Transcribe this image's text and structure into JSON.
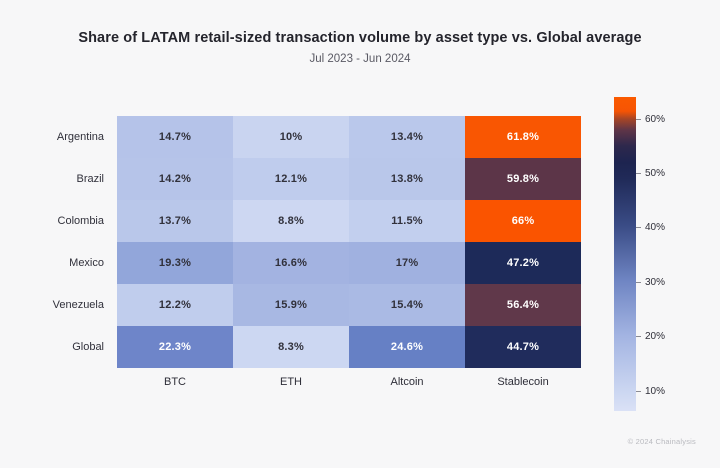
{
  "title": "Share of LATAM retail-sized transaction volume by asset type vs. Global average",
  "subtitle": "Jul 2023 - Jun 2024",
  "footer": "© 2024 Chainalysis",
  "colors": {
    "background": "#F7F7F8",
    "title_text": "#24242C",
    "subtitle_text": "#5A5A64",
    "axis_label_text": "#31313B",
    "cell_text_dark": "#31313B",
    "cell_text_light": "#FFFFFF",
    "footer_text": "#B9BABF",
    "orange_high": "#FA5600",
    "maroon_mid": "#5E3548",
    "navy_mid": "#1F2B5A",
    "lavender_low": "#CBD6F1"
  },
  "chart_data": {
    "type": "heatmap",
    "title": "Share of LATAM retail-sized transaction volume by asset type vs. Global average",
    "subtitle": "Jul 2023 - Jun 2024",
    "rows": [
      "Argentina",
      "Brazil",
      "Colombia",
      "Mexico",
      "Venezuela",
      "Global"
    ],
    "columns": [
      "BTC",
      "ETH",
      "Altcoin",
      "Stablecoin"
    ],
    "unit": "%",
    "values": [
      [
        14.7,
        10,
        13.4,
        61.8
      ],
      [
        14.2,
        12.1,
        13.8,
        59.8
      ],
      [
        13.7,
        8.8,
        11.5,
        66
      ],
      [
        19.3,
        16.6,
        17,
        47.2
      ],
      [
        12.2,
        15.9,
        15.4,
        56.4
      ],
      [
        22.3,
        8.3,
        24.6,
        44.7
      ]
    ],
    "cell_labels": [
      [
        "14.7%",
        "10%",
        "13.4%",
        "61.8%"
      ],
      [
        "14.2%",
        "12.1%",
        "13.8%",
        "59.8%"
      ],
      [
        "13.7%",
        "8.8%",
        "11.5%",
        "66%"
      ],
      [
        "19.3%",
        "16.6%",
        "17%",
        "47.2%"
      ],
      [
        "12.2%",
        "15.9%",
        "15.4%",
        "56.4%"
      ],
      [
        "22.3%",
        "8.3%",
        "24.6%",
        "44.7%"
      ]
    ],
    "cell_colors": [
      [
        "#B5C3E9",
        "#C9D4F0",
        "#BAC8EB",
        "#F95602"
      ],
      [
        "#B6C4E9",
        "#BFCCED",
        "#B9C7EA",
        "#5C3548"
      ],
      [
        "#B9C7EA",
        "#CDD7F2",
        "#C2CFEE",
        "#FA5400"
      ],
      [
        "#92A6DA",
        "#A3B3E1",
        "#A0B1E0",
        "#1D2A59"
      ],
      [
        "#C0CDED",
        "#A8B8E3",
        "#AABAE4",
        "#60384A"
      ],
      [
        "#6E85C9",
        "#CCD7F2",
        "#6680C5",
        "#202C5C"
      ]
    ],
    "white_text_threshold": 22,
    "colorbar": {
      "ticks": [
        "60%",
        "50%",
        "40%",
        "30%",
        "20%",
        "10%"
      ],
      "min_value": 6.5,
      "max_value": 64,
      "gradient_top_to_bottom": [
        [
          "0%",
          "#FA5A00"
        ],
        [
          "4.5%",
          "#F65404"
        ],
        [
          "7%",
          "#A64526"
        ],
        [
          "10.5%",
          "#5F3547"
        ],
        [
          "15.5%",
          "#2E284C"
        ],
        [
          "21%",
          "#1D2450"
        ],
        [
          "26%",
          "#202A58"
        ],
        [
          "41%",
          "#3A4C86"
        ],
        [
          "58.5%",
          "#6F85C3"
        ],
        [
          "76%",
          "#A3B4E2"
        ],
        [
          "93.5%",
          "#CBD6F1"
        ],
        [
          "100%",
          "#DAE1F6"
        ]
      ]
    }
  }
}
